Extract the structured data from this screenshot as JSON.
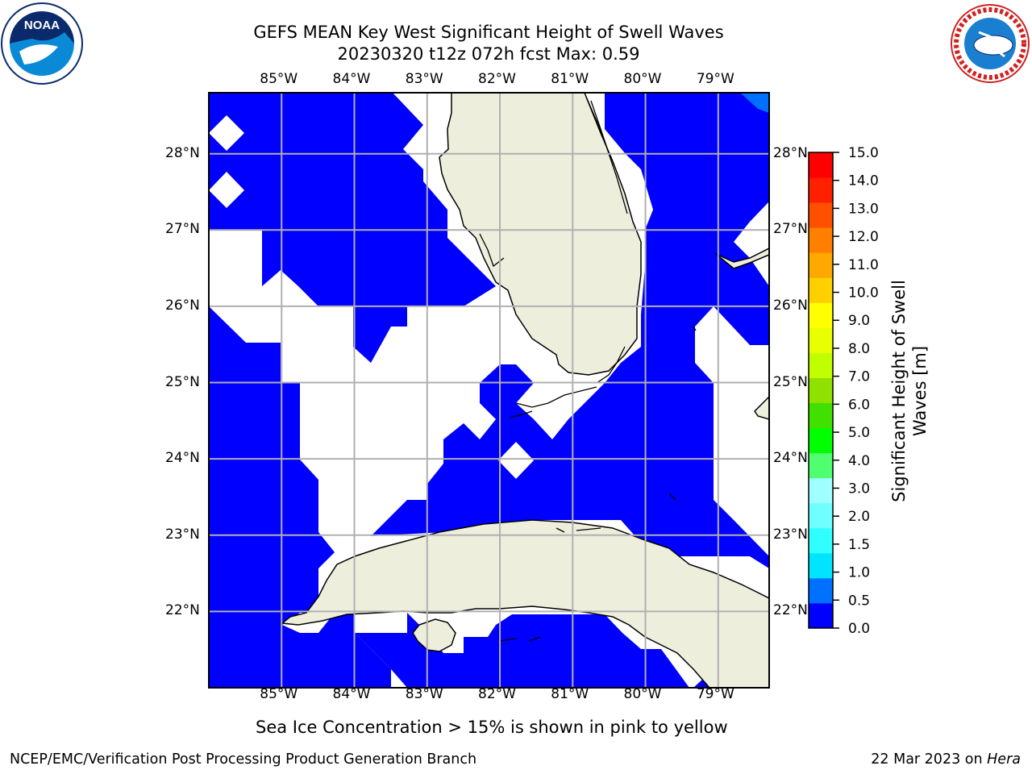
{
  "header": {
    "title_line1": "GEFS MEAN Key West Significant Height of Swell Waves",
    "title_line2": "20230320 t12z 072h fcst   Max: 0.59"
  },
  "logos": {
    "left": "noaa-logo",
    "right": "national-weather-service-logo",
    "left_text": "NOAA",
    "right_text": "NATIONAL WEATHER SERVICE"
  },
  "map": {
    "lon_ticks": [
      "85°W",
      "84°W",
      "83°W",
      "82°W",
      "81°W",
      "80°W",
      "79°W"
    ],
    "lat_ticks": [
      "28°N",
      "27°N",
      "26°N",
      "25°N",
      "24°N",
      "23°N",
      "22°N"
    ],
    "lon_range": [
      -86.0,
      -78.3
    ],
    "lat_range": [
      21.0,
      28.8
    ],
    "colors": {
      "water_swell": "#0000ff",
      "land": "#eeeedd",
      "grid": "#b0b0b0",
      "no_data": "#ffffff"
    }
  },
  "colorbar": {
    "label": "Significant Height of Swell Waves [m]",
    "tick_labels": [
      "0.0",
      "0.5",
      "1.0",
      "1.5",
      "2.0",
      "3.0",
      "4.0",
      "5.0",
      "6.0",
      "7.0",
      "8.0",
      "9.0",
      "10.0",
      "11.0",
      "12.0",
      "13.0",
      "14.0",
      "15.0"
    ],
    "colors": [
      "#0000ff",
      "#0070ff",
      "#00e5ff",
      "#30ffff",
      "#70ffff",
      "#a0ffff",
      "#50ff70",
      "#00ff00",
      "#40e000",
      "#90e000",
      "#c0ff00",
      "#e8ff00",
      "#ffff00",
      "#ffd000",
      "#ffa800",
      "#ff8000",
      "#ff5000",
      "#ff2000",
      "#ff0000"
    ]
  },
  "caption": "Sea Ice Concentration > 15% is shown in pink to yellow",
  "footer": {
    "left": "NCEP/EMC/Verification Post Processing Product Generation Branch",
    "right_date": "22 Mar 2023 on ",
    "right_host": "Hera"
  }
}
